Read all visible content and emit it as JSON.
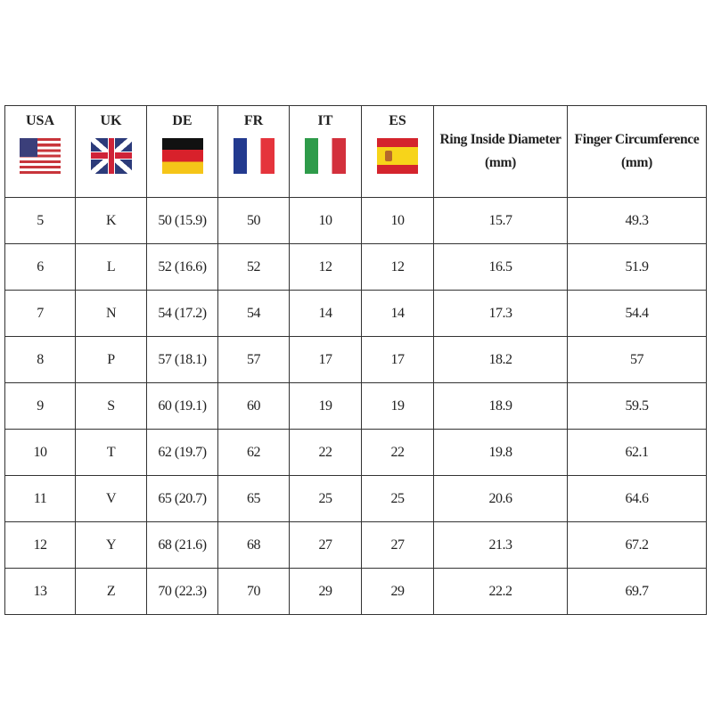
{
  "header": {
    "columns": [
      {
        "label": "USA",
        "flag": "us-flag"
      },
      {
        "label": "UK",
        "flag": "uk-flag"
      },
      {
        "label": "DE",
        "flag": "de-flag"
      },
      {
        "label": "FR",
        "flag": "fr-flag"
      },
      {
        "label": "IT",
        "flag": "it-flag"
      },
      {
        "label": "ES",
        "flag": "es-flag"
      },
      {
        "label": "Ring Inside Diameter",
        "unit": "(mm)"
      },
      {
        "label": "Finger Circumference",
        "unit": "(mm)"
      }
    ]
  },
  "rows": [
    [
      "5",
      "K",
      "50 (15.9)",
      "50",
      "10",
      "10",
      "15.7",
      "49.3"
    ],
    [
      "6",
      "L",
      "52 (16.6)",
      "52",
      "12",
      "12",
      "16.5",
      "51.9"
    ],
    [
      "7",
      "N",
      "54 (17.2)",
      "54",
      "14",
      "14",
      "17.3",
      "54.4"
    ],
    [
      "8",
      "P",
      "57 (18.1)",
      "57",
      "17",
      "17",
      "18.2",
      "57"
    ],
    [
      "9",
      "S",
      "60 (19.1)",
      "60",
      "19",
      "19",
      "18.9",
      "59.5"
    ],
    [
      "10",
      "T",
      "62 (19.7)",
      "62",
      "22",
      "22",
      "19.8",
      "62.1"
    ],
    [
      "11",
      "V",
      "65 (20.7)",
      "65",
      "25",
      "25",
      "20.6",
      "64.6"
    ],
    [
      "12",
      "Y",
      "68 (21.6)",
      "68",
      "27",
      "27",
      "21.3",
      "67.2"
    ],
    [
      "13",
      "Z",
      "70 (22.3)",
      "70",
      "29",
      "29",
      "22.2",
      "69.7"
    ]
  ]
}
